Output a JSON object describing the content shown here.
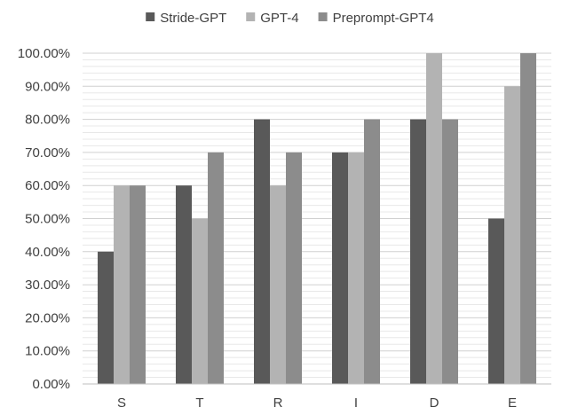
{
  "chart_data": {
    "type": "bar",
    "title": "",
    "xlabel": "",
    "ylabel": "",
    "categories": [
      "S",
      "T",
      "R",
      "I",
      "D",
      "E"
    ],
    "series": [
      {
        "name": "Stride-GPT",
        "color": "#595959",
        "values": [
          0.4,
          0.6,
          0.8,
          0.7,
          0.8,
          0.5
        ]
      },
      {
        "name": "GPT-4",
        "color": "#b3b3b3",
        "values": [
          0.6,
          0.5,
          0.6,
          0.7,
          1.0,
          0.9
        ]
      },
      {
        "name": "Preprompt-GPT4",
        "color": "#8c8c8c",
        "values": [
          0.6,
          0.7,
          0.7,
          0.8,
          0.8,
          1.0
        ]
      }
    ],
    "ylim": [
      0,
      1
    ],
    "y_ticks": [
      "0.00%",
      "10.00%",
      "20.00%",
      "30.00%",
      "40.00%",
      "50.00%",
      "60.00%",
      "70.00%",
      "80.00%",
      "90.00%",
      "100.00%"
    ],
    "minor_grid_step": 0.02,
    "grid": true,
    "legend_position": "top-center"
  }
}
